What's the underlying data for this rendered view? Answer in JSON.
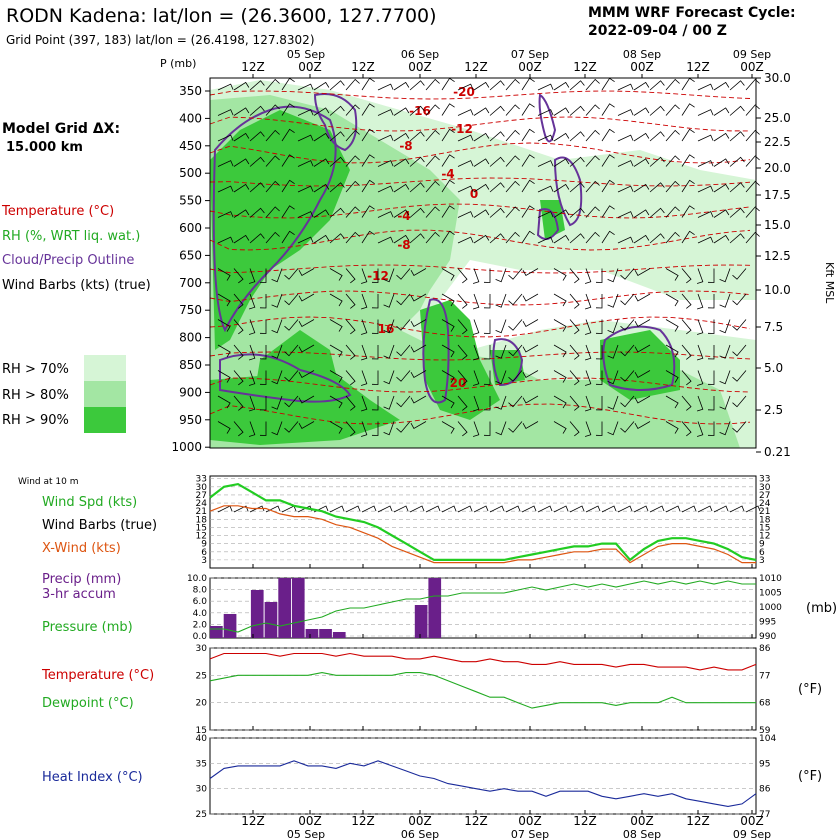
{
  "header": {
    "title": "RODN Kadena:  lat/lon = (26.3600, 127.7700)",
    "subtitle": "Grid Point (397, 183) lat/lon = (26.4198, 127.8302)",
    "cycle_line1": "MMM WRF Forecast Cycle:",
    "cycle_line2": "2022-09-04 / 00  Z"
  },
  "legend": {
    "model_grid_label": "Model Grid ΔX:",
    "model_grid_value": "15.000 km",
    "temperature": "Temperature (°C)",
    "rh": "RH (%, WRT liq. wat.)",
    "cloud": "Cloud/Precip Outline",
    "barbs": "Wind Barbs (kts) (true)",
    "rh70": "RH > 70%",
    "rh80": "RH > 80%",
    "rh90": "RH > 90%",
    "wind10m": "Wind at 10 m",
    "wind_spd": "Wind Spd (kts)",
    "wind_barbs": "Wind Barbs (true)",
    "xwind": "X-Wind (kts)",
    "precip1": "Precip (mm)",
    "precip2": "3-hr accum",
    "pressure": "Pressure (mb)",
    "temp_panel": "Temperature (°C)",
    "dewpoint": "Dewpoint (°C)",
    "heat_index": "Heat Index (°C)",
    "unit_mb": "(mb)",
    "unit_f1": "(°F)",
    "unit_f2": "(°F)",
    "kft_msl": "Kft MSL",
    "p_mb": "P (mb)"
  },
  "colors": {
    "temperature": "#cc0000",
    "rh": "#22aa22",
    "cloud": "#663399",
    "barbs": "#000000",
    "windspd": "#22cc22",
    "xwind": "#dd5511",
    "precip": "#6a1f8a",
    "pressure": "#22aa22",
    "dewpoint": "#22aa22",
    "heatindex": "#1a2a9a",
    "rh70": "#d6f5d6",
    "rh80": "#a3e6a3",
    "rh90": "#3cc93c"
  },
  "chart_data": [
    {
      "type": "area",
      "name": "cross-section",
      "time_labels": [
        "12Z",
        "00Z",
        "12Z",
        "00Z",
        "12Z",
        "00Z",
        "12Z",
        "00Z",
        "12Z",
        "00Z"
      ],
      "date_labels": [
        "05 Sep",
        "06 Sep",
        "07 Sep",
        "08 Sep",
        "09 Sep"
      ],
      "pressure_ticks": [
        "350",
        "400",
        "450",
        "500",
        "550",
        "600",
        "650",
        "700",
        "750",
        "800",
        "850",
        "900",
        "950",
        "1000"
      ],
      "height_ticks": [
        "30.0",
        "25.0",
        "22.5",
        "20.0",
        "17.5",
        "15.0",
        "12.5",
        "10.0",
        "7.5",
        "5.0",
        "2.5",
        "0.21"
      ],
      "temp_labels": [
        "-20",
        "-16",
        "-12",
        "-8",
        "-4",
        "0",
        "-4",
        "-8",
        "-12",
        "16",
        "20"
      ]
    },
    {
      "type": "line",
      "name": "wind",
      "yticks": [
        "33",
        "30",
        "27",
        "24",
        "21",
        "18",
        "15",
        "12",
        "9",
        "6",
        "3"
      ],
      "series": [
        {
          "name": "Wind Spd (kts)",
          "values": [
            26,
            30,
            31,
            28,
            25,
            25,
            23,
            22,
            21,
            19,
            18,
            17,
            15,
            12,
            9,
            6,
            3,
            3,
            3,
            3,
            3,
            3,
            4,
            5,
            6,
            7,
            8,
            8,
            9,
            9,
            3,
            7,
            10,
            11,
            11,
            10,
            9,
            7,
            4,
            3
          ]
        },
        {
          "name": "X-Wind (kts)",
          "values": [
            21,
            23,
            23,
            22,
            22,
            20,
            19,
            19,
            18,
            16,
            15,
            13,
            11,
            8,
            6,
            4,
            2,
            2,
            2,
            2,
            2,
            2,
            3,
            3,
            4,
            5,
            6,
            6,
            7,
            7,
            2,
            5,
            8,
            9,
            9,
            8,
            7,
            5,
            2,
            2
          ]
        }
      ]
    },
    {
      "type": "bar",
      "name": "precip-pressure",
      "precip_ticks": [
        "10.0",
        "8.0",
        "6.0",
        "4.0",
        "2.0",
        "0.0"
      ],
      "pressure_ticks": [
        "1010",
        "1005",
        "1000",
        "995",
        "990"
      ],
      "series": [
        {
          "name": "Precip (mm)",
          "values": [
            2,
            4,
            0,
            8,
            6,
            10,
            10,
            1.5,
            1.5,
            1,
            0,
            0,
            0,
            0,
            0,
            5.5,
            10,
            0,
            0,
            0,
            0,
            0,
            0,
            0,
            0,
            0,
            0,
            0,
            0,
            0,
            0,
            0,
            0,
            0,
            0,
            0,
            0,
            0,
            0,
            0
          ]
        },
        {
          "name": "Pressure (mb)",
          "values": [
            993,
            993,
            992,
            994,
            995,
            994,
            995,
            996,
            997,
            999,
            1000,
            1000,
            1001,
            1002,
            1003,
            1003,
            1004,
            1004,
            1005,
            1005,
            1005,
            1005,
            1006,
            1007,
            1006,
            1007,
            1008,
            1007,
            1008,
            1007,
            1008,
            1009,
            1008,
            1009,
            1008,
            1009,
            1008,
            1009,
            1008,
            1008
          ]
        }
      ]
    },
    {
      "type": "line",
      "name": "temperature",
      "yticks_c": [
        "30",
        "25",
        "20",
        "15"
      ],
      "yticks_f": [
        "86",
        "77",
        "68",
        "59"
      ],
      "series": [
        {
          "name": "Temperature (°C)",
          "values": [
            28,
            29,
            29,
            29,
            29,
            28.5,
            29,
            29,
            29,
            28.5,
            29,
            28.5,
            28.5,
            28.5,
            28,
            28,
            28.5,
            28,
            27.5,
            27.5,
            28,
            27.5,
            27.5,
            27,
            27,
            27.5,
            27,
            27,
            27,
            26.5,
            27,
            27,
            26.5,
            26.5,
            26.5,
            26,
            26.5,
            26,
            26,
            27
          ]
        },
        {
          "name": "Dewpoint (°C)",
          "values": [
            24,
            24.5,
            25,
            25,
            25,
            25,
            25,
            25,
            25.5,
            25,
            25,
            25,
            25,
            25,
            25.5,
            25.5,
            25,
            24,
            23,
            22,
            21,
            21,
            20,
            19,
            19.5,
            20,
            20,
            20,
            20,
            19.5,
            20,
            20,
            20,
            21,
            20,
            20,
            20,
            20,
            20,
            20
          ]
        }
      ]
    },
    {
      "type": "line",
      "name": "heat-index",
      "yticks_c": [
        "40",
        "35",
        "30",
        "25"
      ],
      "yticks_f": [
        "104",
        "95",
        "86",
        "77"
      ],
      "series": [
        {
          "name": "Heat Index (°C)",
          "values": [
            32,
            34,
            34.5,
            34.5,
            34.5,
            34.5,
            35.5,
            34.5,
            34.5,
            34,
            35,
            34.5,
            35.5,
            34.5,
            33.5,
            32.5,
            32,
            31,
            30.5,
            30,
            29.5,
            30,
            29.5,
            29.5,
            28.5,
            29.5,
            29.5,
            29.5,
            28.5,
            28,
            28.5,
            29,
            28.5,
            29,
            28,
            27.5,
            27,
            26.5,
            27,
            29
          ]
        }
      ]
    }
  ]
}
